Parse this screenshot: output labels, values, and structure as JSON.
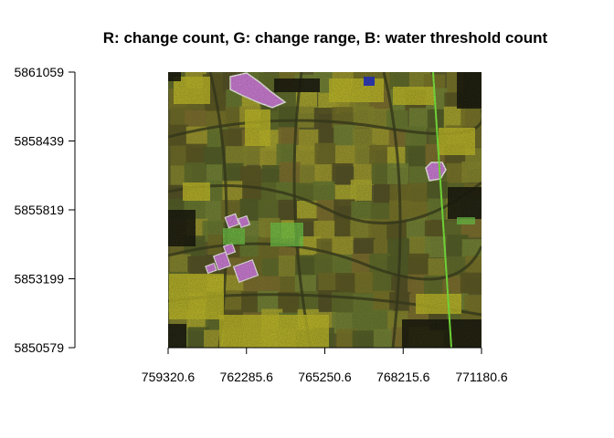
{
  "chart_data": {
    "type": "heatmap",
    "title": "R: change count, G: change range, B: water threshold count",
    "xlabel": "",
    "ylabel": "",
    "x_ticks": [
      759320.6,
      762285.6,
      765250.6,
      768215.6,
      771180.6
    ],
    "x_tick_labels": [
      "759320.6",
      "762285.6",
      "765250.6",
      "768215.6",
      "771180.6"
    ],
    "y_ticks": [
      5850579,
      5853199,
      5855819,
      5858439,
      5861059
    ],
    "y_tick_labels": [
      "5850579",
      "5853199",
      "5855819",
      "5858439",
      "5861059"
    ],
    "xlim": [
      759320.6,
      771180.6
    ],
    "ylim": [
      5850579,
      5861059
    ],
    "raster": {
      "description": "RGB composite raster of agricultural fields",
      "palette": {
        "background": "#5a5a2a",
        "olive": "#6f6a22",
        "dark": "#2f3316",
        "yellow": "#c9c323",
        "magenta": "#d77ce8",
        "green": "#6fd64a",
        "blue": "#2430c8",
        "black": "#0b0b06"
      }
    }
  }
}
